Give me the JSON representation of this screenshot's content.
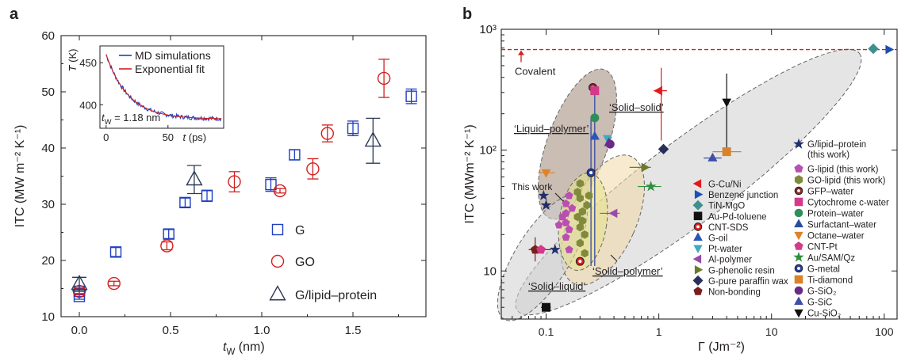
{
  "colors": {
    "G": "#1f3fbf",
    "GO": "#d21f1f",
    "lipid": "#2b3a55",
    "md": "#1f3fbf",
    "fit": "#d21f1f",
    "covalent": "#d21f1f",
    "region_label": "#3d8fd6"
  },
  "chart_data": [
    {
      "panel": "a",
      "type": "scatter",
      "xlabel_main": "t",
      "xlabel_sub": "W",
      "xlabel_unit": " (nm)",
      "ylabel": "ITC (MW m⁻² K⁻¹)",
      "xlim": [
        -0.1,
        1.9
      ],
      "ylim": [
        10,
        60
      ],
      "xticks": [
        "0.0",
        "0.5",
        "1.0",
        "1.5"
      ],
      "yticks": [
        "10",
        "20",
        "30",
        "40",
        "50",
        "60"
      ],
      "series": [
        {
          "name": "G",
          "marker": "square",
          "points": [
            [
              0.0,
              13.6,
              0.5
            ],
            [
              0.0,
              14.5,
              0.5
            ],
            [
              0.2,
              21.5,
              0.8
            ],
            [
              0.49,
              24.7,
              0.8
            ],
            [
              0.58,
              30.3,
              0.8
            ],
            [
              0.7,
              31.5,
              1.0
            ],
            [
              1.05,
              33.5,
              1.2
            ],
            [
              1.18,
              38.8,
              0.9
            ],
            [
              1.5,
              43.5,
              1.3
            ],
            [
              1.82,
              49.2,
              1.3
            ]
          ]
        },
        {
          "name": "GO",
          "marker": "circle",
          "points": [
            [
              0.0,
              14.5,
              0.6
            ],
            [
              0.19,
              15.9,
              0.4
            ],
            [
              0.48,
              22.6,
              0.7
            ],
            [
              0.85,
              34.0,
              1.8
            ],
            [
              1.1,
              32.4,
              0.4
            ],
            [
              1.28,
              36.3,
              1.8
            ],
            [
              1.36,
              42.6,
              1.5
            ],
            [
              1.67,
              52.4,
              3.4
            ]
          ]
        },
        {
          "name": "G/lipid–protein",
          "marker": "triangle",
          "points": [
            [
              0.0,
              15.8,
              1.2
            ],
            [
              0.63,
              34.4,
              2.5
            ],
            [
              1.61,
              41.3,
              4.0
            ]
          ]
        }
      ],
      "inset": {
        "ylabel_main": "T",
        "ylabel_unit": " (K)",
        "xlabel_main": "t",
        "xlabel_unit": " (ps)",
        "xlim": [
          -5,
          95
        ],
        "ylim": [
          372,
          470
        ],
        "xticks": [
          "0",
          "50"
        ],
        "yticks": [
          "400",
          "450"
        ],
        "legend": [
          "MD simulations",
          "Exponential fit"
        ],
        "annotation_main": "t",
        "annotation_sub": "W",
        "annotation_value": " = 1.18 nm",
        "fit": {
          "T0": 460,
          "Tinf": 383,
          "tau": 18
        }
      }
    },
    {
      "panel": "b",
      "type": "scatter",
      "log_x": true,
      "log_y": true,
      "xlabel": "Γ (Jm⁻²)",
      "ylabel": "ITC (MWm⁻² K⁻¹)",
      "xlim": [
        0.04,
        130
      ],
      "ylim": [
        4,
        1000
      ],
      "xticks": [
        "0.1",
        "1",
        "10",
        "100"
      ],
      "yticks": [
        "10",
        "10²",
        "10³"
      ],
      "covalent_line": 680,
      "covalent_label": "Covalent",
      "region_labels": [
        "‘Solid–solid’",
        "‘Liquid–polymer’",
        "‘Solid–polymer’",
        "‘Solid–liquid’",
        "This work"
      ],
      "legend_col1": [
        "G-Cu/Ni",
        "Benzene junction",
        "TiN-MgO",
        "Au-Pd-toluene",
        "CNT-SDS",
        "G-oil",
        "Pt-water",
        "Al-polymer",
        "G-phenolic resin",
        "G-pure paraffin wax",
        "Non-bonding"
      ],
      "legend_col2_header": [
        "G/lipid–protein",
        "(this work)"
      ],
      "legend_col2": [
        "G-lipid (this work)",
        "GO-lipid (this work)",
        "GFP–water",
        "Cytochrome c-water",
        "Protein–water",
        "Surfactant–water",
        "Octane–water",
        "CNT-Pt",
        "Au/SAM/Qz",
        "G-metal",
        "Ti-diamond",
        "G-SiO₂",
        "G-SiC",
        "Cu-SiO₂"
      ],
      "points": [
        {
          "x": 1.0,
          "y": 310,
          "s": "G-Cu/Ni"
        },
        {
          "x": 110,
          "y": 680,
          "s": "Benzene junction"
        },
        {
          "x": 80,
          "y": 690,
          "s": "TiN-MgO"
        },
        {
          "x": 0.1,
          "y": 5,
          "s": "Au-Pd-toluene"
        },
        {
          "x": 0.2,
          "y": 12,
          "s": "CNT-SDS"
        },
        {
          "x": 0.27,
          "y": 130,
          "s": "G-oil"
        },
        {
          "x": 0.35,
          "y": 125,
          "s": "Pt-water"
        },
        {
          "x": 0.4,
          "y": 30,
          "s": "Al-polymer"
        },
        {
          "x": 0.75,
          "y": 72,
          "s": "G-phenolic resin"
        },
        {
          "x": 1.1,
          "y": 102,
          "s": "G-pure paraffin wax"
        },
        {
          "x": 0.08,
          "y": 15,
          "s": "Non-bonding"
        },
        {
          "x": 0.095,
          "y": 42,
          "s": "G/lipid–protein"
        },
        {
          "x": 0.1,
          "y": 35,
          "s": "G/lipid–protein"
        },
        {
          "x": 0.12,
          "y": 15,
          "s": "G/lipid–protein"
        },
        {
          "x": 0.26,
          "y": 330,
          "s": "GFP–water"
        },
        {
          "x": 0.27,
          "y": 310,
          "s": "Cytochrome c-water"
        },
        {
          "x": 0.27,
          "y": 185,
          "s": "Protein–water"
        },
        {
          "x": 0.36,
          "y": 115,
          "s": "Surfactant–water"
        },
        {
          "x": 0.1,
          "y": 65,
          "s": "Octane–water"
        },
        {
          "x": 0.09,
          "y": 15,
          "s": "CNT-Pt"
        },
        {
          "x": 0.85,
          "y": 50,
          "s": "Au/SAM/Qz"
        },
        {
          "x": 0.25,
          "y": 65,
          "s": "G-metal"
        },
        {
          "x": 4.0,
          "y": 97,
          "s": "Ti-diamond"
        },
        {
          "x": 0.37,
          "y": 112,
          "s": "G-SiO₂"
        },
        {
          "x": 3.0,
          "y": 86,
          "s": "G-SiC"
        },
        {
          "x": 4.0,
          "y": 250,
          "s": "Cu-SiO₂"
        }
      ]
    }
  ],
  "panel_labels": [
    "a",
    "b"
  ]
}
